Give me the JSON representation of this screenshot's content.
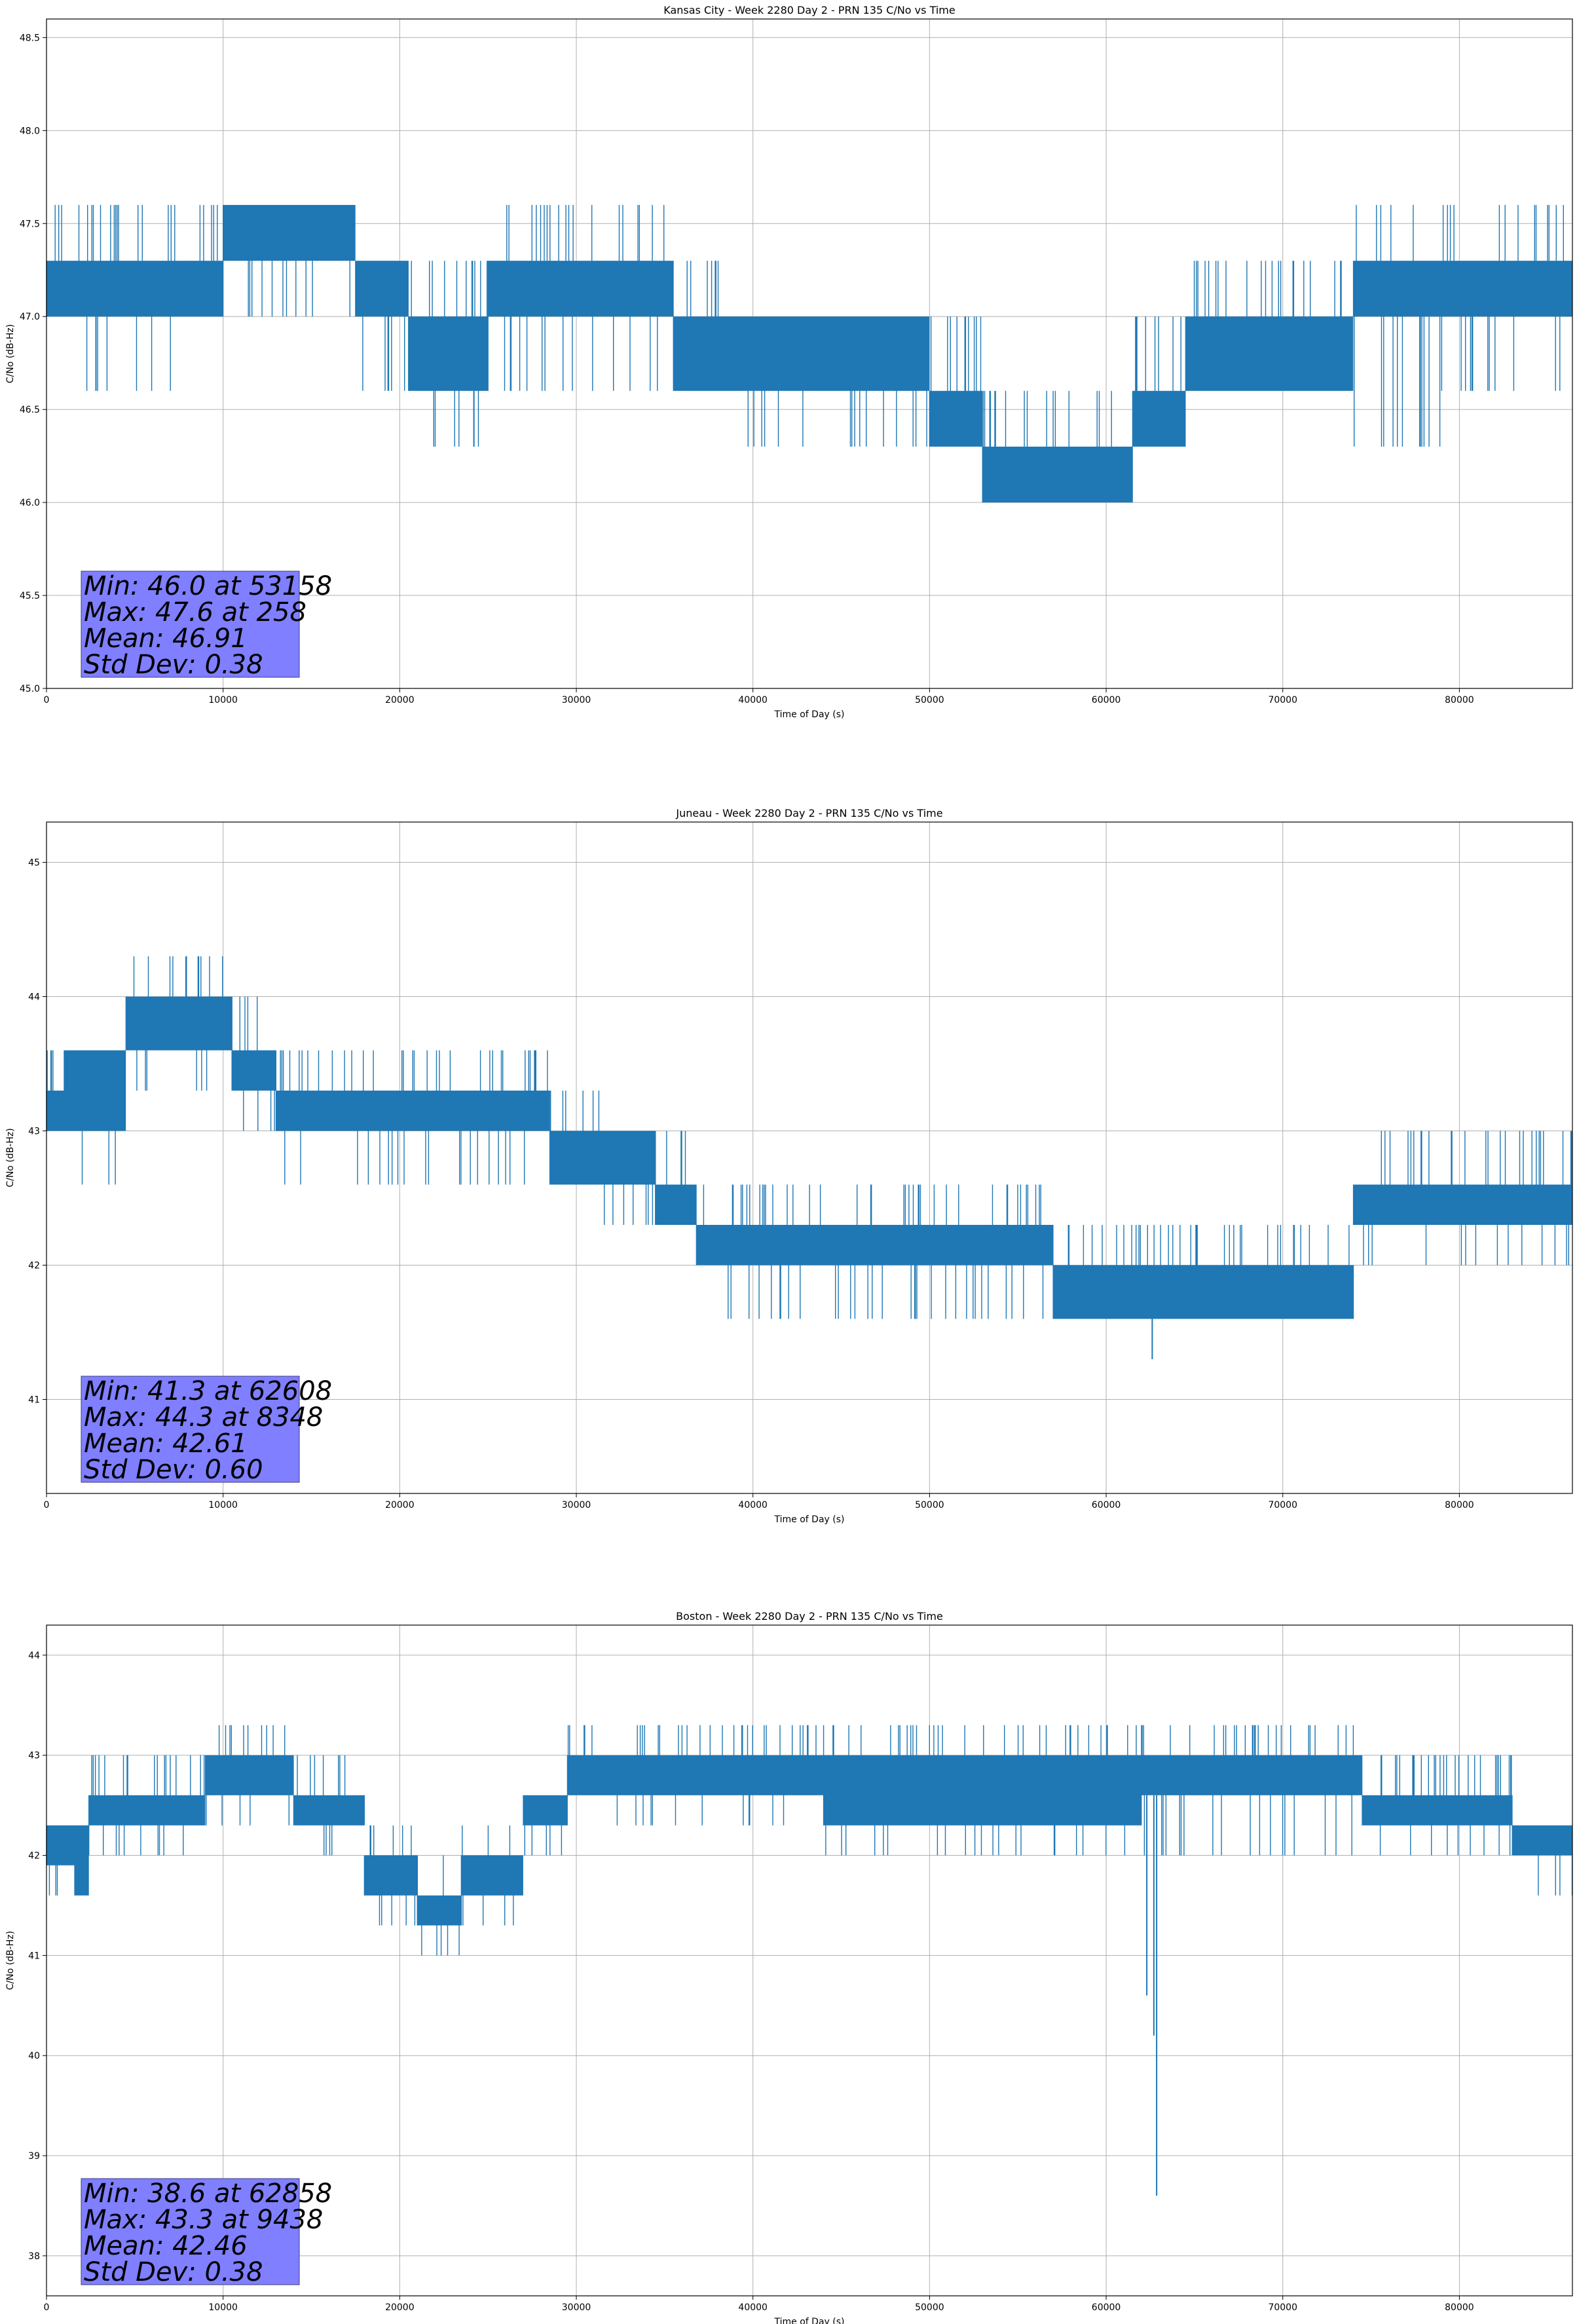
{
  "chart_data": [
    {
      "type": "line",
      "title": "Kansas City - Week 2280 Day 2 - PRN 135 C/No vs Time",
      "xlabel": "Time of Day (s)",
      "ylabel": "C/No (dB-Hz)",
      "xlim": [
        0,
        86400
      ],
      "ylim": [
        45.0,
        48.6
      ],
      "xticks": [
        0,
        10000,
        20000,
        30000,
        40000,
        50000,
        60000,
        70000,
        80000
      ],
      "yticks": [
        45.0,
        45.5,
        46.0,
        46.5,
        47.0,
        47.5,
        48.0,
        48.5
      ],
      "ytick_decimals": 1,
      "grid": true,
      "color": "#1f77b4",
      "series": [
        {
          "segments": [
            {
              "x0": 0,
              "x1": 2000,
              "lo": 47.0,
              "hi": 47.3,
              "lo_spike": 47.0,
              "hi_spike": 47.6
            },
            {
              "x0": 2000,
              "x1": 8000,
              "lo": 47.0,
              "hi": 47.3,
              "lo_spike": 46.6,
              "hi_spike": 47.6
            },
            {
              "x0": 8000,
              "x1": 10000,
              "lo": 47.0,
              "hi": 47.3,
              "lo_spike": 47.0,
              "hi_spike": 47.6
            },
            {
              "x0": 10000,
              "x1": 17500,
              "lo": 47.3,
              "hi": 47.6,
              "lo_spike": 47.0,
              "hi_spike": 47.6
            },
            {
              "x0": 17500,
              "x1": 20500,
              "lo": 47.0,
              "hi": 47.3,
              "lo_spike": 46.6,
              "hi_spike": 47.3
            },
            {
              "x0": 20500,
              "x1": 25000,
              "lo": 46.6,
              "hi": 47.0,
              "lo_spike": 46.3,
              "hi_spike": 47.3
            },
            {
              "x0": 25000,
              "x1": 29000,
              "lo": 47.0,
              "hi": 47.3,
              "lo_spike": 46.6,
              "hi_spike": 47.6
            },
            {
              "x0": 29000,
              "x1": 35500,
              "lo": 47.0,
              "hi": 47.3,
              "lo_spike": 46.6,
              "hi_spike": 47.6
            },
            {
              "x0": 35500,
              "x1": 38500,
              "lo": 46.6,
              "hi": 47.0,
              "lo_spike": 46.6,
              "hi_spike": 47.3
            },
            {
              "x0": 38500,
              "x1": 50000,
              "lo": 46.6,
              "hi": 47.0,
              "lo_spike": 46.3,
              "hi_spike": 47.0
            },
            {
              "x0": 50000,
              "x1": 53000,
              "lo": 46.3,
              "hi": 46.6,
              "lo_spike": 46.3,
              "hi_spike": 47.0
            },
            {
              "x0": 53000,
              "x1": 61500,
              "lo": 46.0,
              "hi": 46.3,
              "lo_spike": 46.0,
              "hi_spike": 46.6
            },
            {
              "x0": 61500,
              "x1": 64500,
              "lo": 46.3,
              "hi": 46.6,
              "lo_spike": 46.3,
              "hi_spike": 47.0
            },
            {
              "x0": 64500,
              "x1": 74000,
              "lo": 46.6,
              "hi": 47.0,
              "lo_spike": 46.6,
              "hi_spike": 47.3
            },
            {
              "x0": 74000,
              "x1": 79000,
              "lo": 47.0,
              "hi": 47.3,
              "lo_spike": 46.3,
              "hi_spike": 47.6
            },
            {
              "x0": 79000,
              "x1": 86400,
              "lo": 47.0,
              "hi": 47.3,
              "lo_spike": 46.6,
              "hi_spike": 47.6
            }
          ],
          "dips": [
            {
              "x": 24200,
              "v": 46.3
            },
            {
              "x": 53158,
              "v": 46.0
            },
            {
              "x": 2800,
              "v": 46.6
            }
          ]
        }
      ],
      "stats": {
        "line1": "Min: 46.0 at 53158",
        "line2": "Max: 47.6 at 258",
        "line3": "Mean: 46.91",
        "line4": "Std Dev: 0.38"
      }
    },
    {
      "type": "line",
      "title": "Juneau - Week 2280 Day 2 - PRN 135 C/No vs Time",
      "xlabel": "Time of Day (s)",
      "ylabel": "C/No (dB-Hz)",
      "xlim": [
        0,
        86400
      ],
      "ylim": [
        40.3,
        45.3
      ],
      "xticks": [
        0,
        10000,
        20000,
        30000,
        40000,
        50000,
        60000,
        70000,
        80000
      ],
      "yticks": [
        41,
        42,
        43,
        44,
        45
      ],
      "ytick_decimals": 0,
      "grid": true,
      "color": "#1f77b4",
      "series": [
        {
          "segments": [
            {
              "x0": 0,
              "x1": 1000,
              "lo": 43.0,
              "hi": 43.3,
              "lo_spike": 42.6,
              "hi_spike": 43.6
            },
            {
              "x0": 1000,
              "x1": 4500,
              "lo": 43.0,
              "hi": 43.6,
              "lo_spike": 42.6,
              "hi_spike": 43.6
            },
            {
              "x0": 4500,
              "x1": 10500,
              "lo": 43.6,
              "hi": 44.0,
              "lo_spike": 43.3,
              "hi_spike": 44.3
            },
            {
              "x0": 10500,
              "x1": 13000,
              "lo": 43.3,
              "hi": 43.6,
              "lo_spike": 43.0,
              "hi_spike": 44.0
            },
            {
              "x0": 13000,
              "x1": 20000,
              "lo": 43.0,
              "hi": 43.3,
              "lo_spike": 42.6,
              "hi_spike": 43.6
            },
            {
              "x0": 20000,
              "x1": 28500,
              "lo": 43.0,
              "hi": 43.3,
              "lo_spike": 42.6,
              "hi_spike": 43.6
            },
            {
              "x0": 28500,
              "x1": 31500,
              "lo": 42.6,
              "hi": 43.0,
              "lo_spike": 42.6,
              "hi_spike": 43.3
            },
            {
              "x0": 31500,
              "x1": 34500,
              "lo": 42.6,
              "hi": 43.0,
              "lo_spike": 42.3,
              "hi_spike": 43.0
            },
            {
              "x0": 34500,
              "x1": 36800,
              "lo": 42.3,
              "hi": 42.6,
              "lo_spike": 42.3,
              "hi_spike": 43.0
            },
            {
              "x0": 36800,
              "x1": 57000,
              "lo": 42.0,
              "hi": 42.3,
              "lo_spike": 41.6,
              "hi_spike": 42.6
            },
            {
              "x0": 57000,
              "x1": 66000,
              "lo": 41.6,
              "hi": 42.0,
              "lo_spike": 41.6,
              "hi_spike": 42.3
            },
            {
              "x0": 66000,
              "x1": 74000,
              "lo": 41.6,
              "hi": 42.0,
              "lo_spike": 41.6,
              "hi_spike": 42.3
            },
            {
              "x0": 74000,
              "x1": 75500,
              "lo": 42.3,
              "hi": 42.6,
              "lo_spike": 42.0,
              "hi_spike": 42.6
            },
            {
              "x0": 75500,
              "x1": 86400,
              "lo": 42.3,
              "hi": 42.6,
              "lo_spike": 42.0,
              "hi_spike": 43.0
            }
          ],
          "dips": [
            {
              "x": 62608,
              "v": 41.3
            }
          ]
        }
      ],
      "stats": {
        "line1": "Min: 41.3 at 62608",
        "line2": "Max: 44.3 at 8348",
        "line3": "Mean: 42.61",
        "line4": "Std Dev: 0.60"
      }
    },
    {
      "type": "line",
      "title": "Boston - Week 2280 Day 2 - PRN 135 C/No vs Time",
      "xlabel": "Time of Day (s)",
      "ylabel": "C/No (dB-Hz)",
      "xlim": [
        0,
        86400
      ],
      "ylim": [
        37.6,
        44.3
      ],
      "xticks": [
        0,
        10000,
        20000,
        30000,
        40000,
        50000,
        60000,
        70000,
        80000
      ],
      "yticks": [
        38,
        39,
        40,
        41,
        42,
        43,
        44
      ],
      "ytick_decimals": 0,
      "grid": true,
      "color": "#1f77b4",
      "series": [
        {
          "segments": [
            {
              "x0": 0,
              "x1": 1600,
              "lo": 41.9,
              "hi": 42.3,
              "lo_spike": 41.6,
              "hi_spike": 42.3
            },
            {
              "x0": 1600,
              "x1": 2400,
              "lo": 41.6,
              "hi": 42.3,
              "lo_spike": 41.6,
              "hi_spike": 42.3
            },
            {
              "x0": 2400,
              "x1": 9000,
              "lo": 42.3,
              "hi": 42.6,
              "lo_spike": 42.0,
              "hi_spike": 43.0
            },
            {
              "x0": 9000,
              "x1": 14000,
              "lo": 42.6,
              "hi": 43.0,
              "lo_spike": 42.3,
              "hi_spike": 43.3
            },
            {
              "x0": 14000,
              "x1": 18000,
              "lo": 42.3,
              "hi": 42.6,
              "lo_spike": 42.0,
              "hi_spike": 43.0
            },
            {
              "x0": 18000,
              "x1": 21000,
              "lo": 41.6,
              "hi": 42.0,
              "lo_spike": 41.3,
              "hi_spike": 42.3
            },
            {
              "x0": 21000,
              "x1": 23500,
              "lo": 41.3,
              "hi": 41.6,
              "lo_spike": 41.0,
              "hi_spike": 42.0
            },
            {
              "x0": 23500,
              "x1": 27000,
              "lo": 41.6,
              "hi": 42.0,
              "lo_spike": 41.3,
              "hi_spike": 42.3
            },
            {
              "x0": 27000,
              "x1": 29500,
              "lo": 42.3,
              "hi": 42.6,
              "lo_spike": 42.0,
              "hi_spike": 42.6
            },
            {
              "x0": 29500,
              "x1": 44000,
              "lo": 42.6,
              "hi": 43.0,
              "lo_spike": 42.3,
              "hi_spike": 43.3
            },
            {
              "x0": 44000,
              "x1": 62000,
              "lo": 42.3,
              "hi": 43.0,
              "lo_spike": 42.0,
              "hi_spike": 43.3
            },
            {
              "x0": 62000,
              "x1": 74500,
              "lo": 42.6,
              "hi": 43.0,
              "lo_spike": 42.0,
              "hi_spike": 43.3
            },
            {
              "x0": 74500,
              "x1": 83000,
              "lo": 42.3,
              "hi": 42.6,
              "lo_spike": 42.0,
              "hi_spike": 43.0
            },
            {
              "x0": 83000,
              "x1": 86400,
              "lo": 42.0,
              "hi": 42.3,
              "lo_spike": 41.6,
              "hi_spike": 42.3
            }
          ],
          "dips": [
            {
              "x": 62300,
              "v": 40.6
            },
            {
              "x": 62700,
              "v": 40.2
            },
            {
              "x": 62858,
              "v": 38.6
            }
          ]
        }
      ],
      "stats": {
        "line1": "Min: 38.6 at 62858",
        "line2": "Max: 43.3 at 9438",
        "line3": "Mean: 42.46",
        "line4": "Std Dev: 0.38"
      }
    }
  ]
}
